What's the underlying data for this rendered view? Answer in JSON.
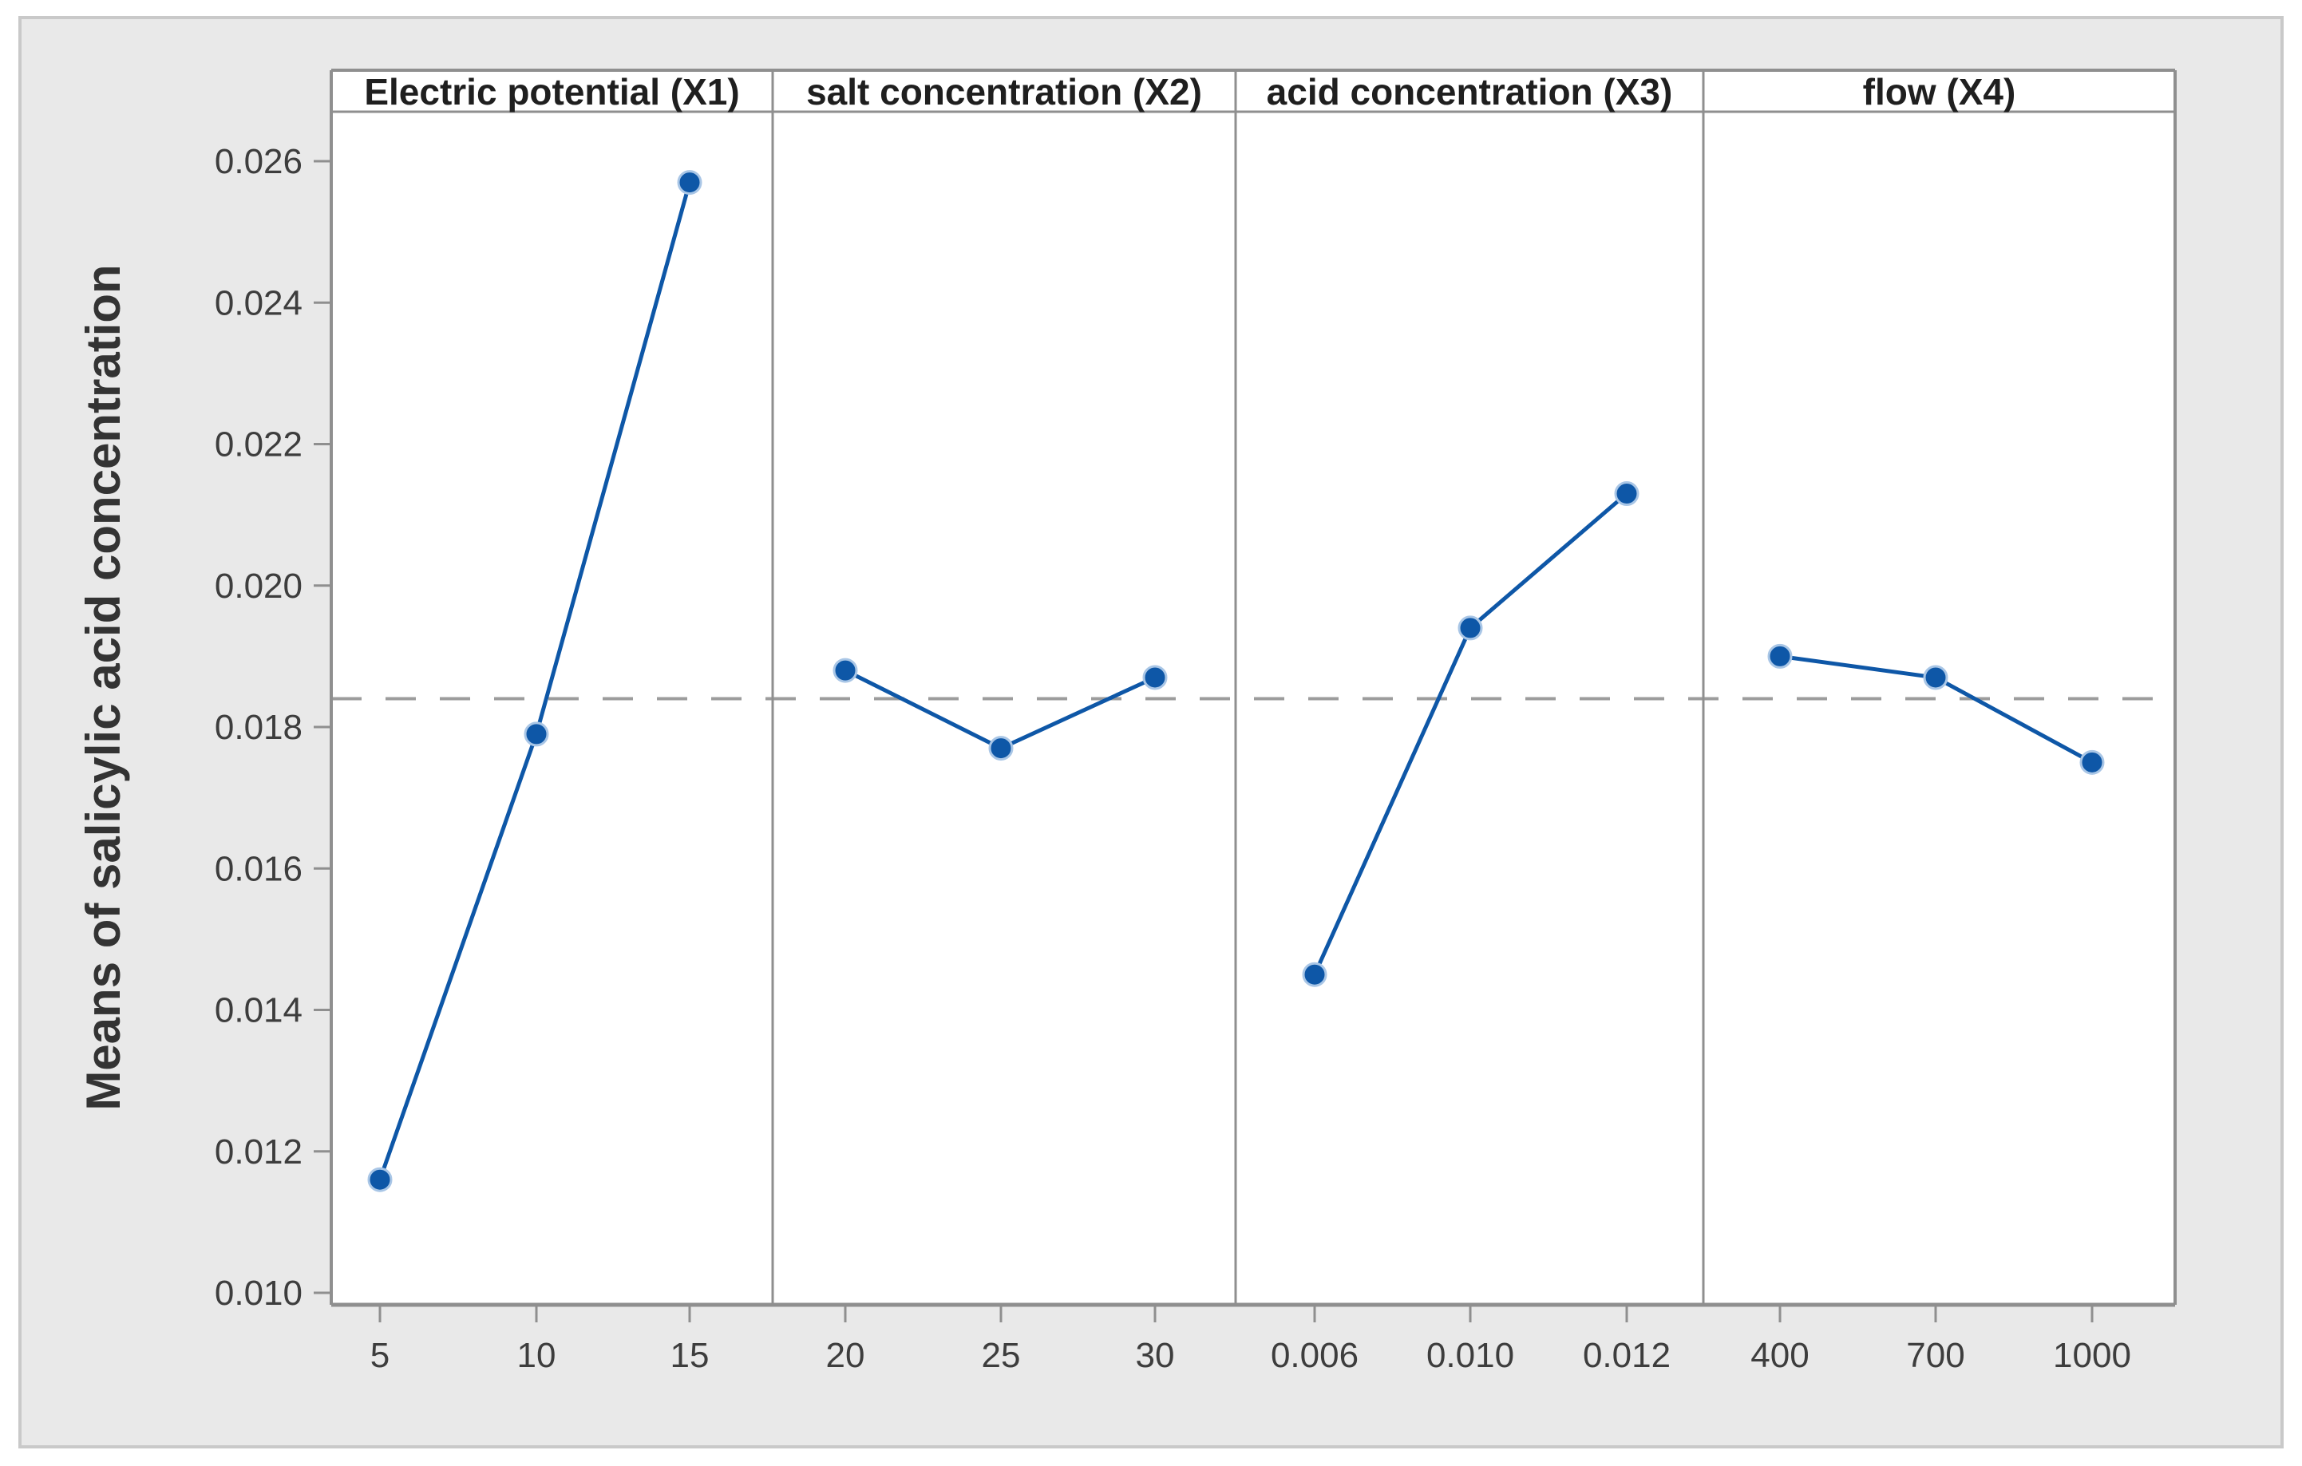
{
  "figure": {
    "ylabel": "Means of salicylic acid concentration"
  },
  "chart_data": {
    "type": "line",
    "title": "",
    "ylabel": "Means of salicylic acid concentration",
    "ylim": [
      0.01,
      0.026
    ],
    "y_ticks": [
      "0.010",
      "0.012",
      "0.014",
      "0.016",
      "0.018",
      "0.020",
      "0.022",
      "0.024",
      "0.026"
    ],
    "grand_mean": 0.0184,
    "grid": false,
    "legend_position": "none",
    "panels": [
      {
        "title": "Electric potential (X1)",
        "categories": [
          "5",
          "10",
          "15"
        ],
        "values": [
          0.0116,
          0.0179,
          0.0257
        ]
      },
      {
        "title": "salt concentration (X2)",
        "categories": [
          "20",
          "25",
          "30"
        ],
        "values": [
          0.0188,
          0.0177,
          0.0187
        ]
      },
      {
        "title": "acid concentration (X3)",
        "categories": [
          "0.006",
          "0.010",
          "0.012"
        ],
        "values": [
          0.0145,
          0.0194,
          0.0213
        ]
      },
      {
        "title": "flow (X4)",
        "categories": [
          "400",
          "700",
          "1000"
        ],
        "values": [
          0.019,
          0.0187,
          0.0175
        ]
      }
    ],
    "colors": {
      "series": "#0E57A7",
      "marker_halo": "#A9C6E6",
      "mean_line": "#9C9C9C",
      "panel_border": "#8F8F8F",
      "tick_text": "#3D3D3D",
      "header_text": "#1F1F1F",
      "figure_bg": "#E9E9E9",
      "figure_frame": "#C9C9C9",
      "plot_bg": "#FFFFFF"
    }
  }
}
